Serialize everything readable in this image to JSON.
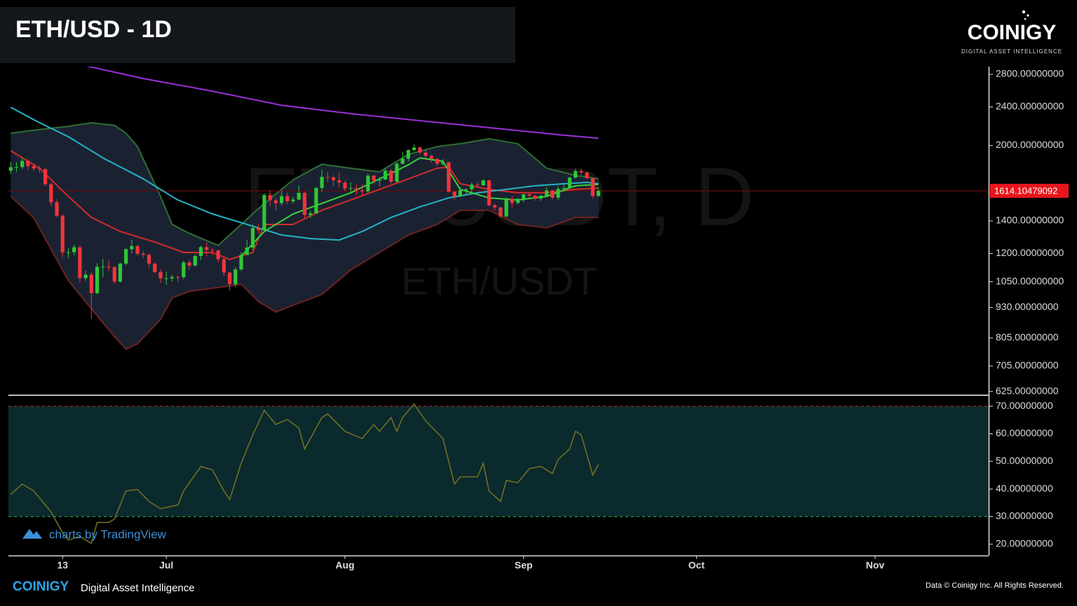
{
  "header": {
    "title": "ETH/USD - 1D",
    "logo": "COINIGY",
    "tagline": "DIGITAL ASSET INTELLIGENCE"
  },
  "chart_data": [
    {
      "type": "candlestick",
      "watermark": "ETH/USDT, D",
      "watermark_subtitle": "ETH/USDT",
      "log_scale": true,
      "xlim": [
        -0.4,
        169.7
      ],
      "ylim": [
        617,
        2904
      ],
      "yticks": [
        {
          "value": 2800,
          "label": "2800.00000000"
        },
        {
          "value": 2400,
          "label": "2400.00000000"
        },
        {
          "value": 2000,
          "label": "2000.00000000"
        },
        {
          "value": 1400,
          "label": "1400.00000000"
        },
        {
          "value": 1200,
          "label": "1200.00000000"
        },
        {
          "value": 1050,
          "label": "1050.00000000"
        },
        {
          "value": 930,
          "label": "930.00000000"
        },
        {
          "value": 805,
          "label": "805.00000000"
        },
        {
          "value": 705,
          "label": "705.00000000"
        },
        {
          "value": 625,
          "label": "625.00000000"
        }
      ],
      "up_color": "#2fc737",
      "down_color": "#f2343c",
      "x": [
        0,
        1,
        2,
        3,
        4,
        5,
        6,
        7,
        8,
        9,
        10,
        11,
        12,
        13,
        14,
        15,
        16,
        17,
        18,
        19,
        20,
        21,
        22,
        23,
        24,
        25,
        26,
        27,
        28,
        29,
        30,
        31,
        32,
        33,
        34,
        35,
        36,
        37,
        38,
        39,
        40,
        41,
        42,
        43,
        44,
        45,
        46,
        47,
        48,
        49,
        50,
        51,
        52,
        53,
        54,
        55,
        56,
        57,
        58,
        59,
        60,
        61,
        62,
        63,
        64,
        65,
        66,
        67,
        68,
        69,
        70,
        71,
        72,
        73,
        74,
        75,
        76,
        77,
        78,
        79,
        80,
        81,
        82,
        83,
        84,
        85,
        86,
        87,
        88,
        89,
        90,
        91,
        92,
        93,
        94,
        95,
        96,
        97,
        98,
        99,
        100,
        101,
        102
      ],
      "open": [
        1775,
        1805,
        1806,
        1859,
        1814,
        1793,
        1789,
        1665,
        1529,
        1435,
        1207,
        1208,
        1236,
        1068,
        1086,
        995,
        1127,
        1128,
        1125,
        1051,
        1144,
        1225,
        1243,
        1199,
        1193,
        1144,
        1099,
        1067,
        1067,
        1074,
        1073,
        1150,
        1133,
        1186,
        1237,
        1220,
        1217,
        1168,
        1097,
        1038,
        1113,
        1192,
        1234,
        1354,
        1339,
        1581,
        1543,
        1523,
        1574,
        1536,
        1549,
        1598,
        1440,
        1451,
        1636,
        1724,
        1721,
        1697,
        1679,
        1632,
        1634,
        1618,
        1610,
        1734,
        1694,
        1702,
        1775,
        1685,
        1835,
        1879,
        1957,
        1981,
        1935,
        1904,
        1877,
        1834,
        1848,
        1608,
        1574,
        1618,
        1626,
        1662,
        1657,
        1696,
        1508,
        1492,
        1430,
        1554,
        1524,
        1553,
        1587,
        1577,
        1556,
        1577,
        1617,
        1563,
        1629,
        1636,
        1718,
        1772,
        1761,
        1714,
        1575
      ],
      "high": [
        1850,
        1850,
        1885,
        1870,
        1835,
        1815,
        1795,
        1680,
        1550,
        1445,
        1230,
        1250,
        1245,
        1108,
        1098,
        1145,
        1170,
        1160,
        1130,
        1150,
        1230,
        1280,
        1248,
        1215,
        1200,
        1150,
        1115,
        1100,
        1085,
        1080,
        1160,
        1165,
        1195,
        1245,
        1265,
        1230,
        1222,
        1175,
        1100,
        1125,
        1208,
        1280,
        1375,
        1380,
        1595,
        1615,
        1560,
        1615,
        1600,
        1570,
        1655,
        1608,
        1470,
        1645,
        1785,
        1765,
        1735,
        1760,
        1695,
        1680,
        1665,
        1665,
        1750,
        1740,
        1722,
        1795,
        1790,
        1845,
        1940,
        1965,
        2010,
        1990,
        1965,
        1915,
        1885,
        1875,
        1850,
        1610,
        1645,
        1635,
        1680,
        1685,
        1705,
        1700,
        1515,
        1495,
        1565,
        1575,
        1562,
        1592,
        1598,
        1585,
        1585,
        1645,
        1622,
        1650,
        1668,
        1726,
        1790,
        1790,
        1765,
        1722,
        1640
      ],
      "low": [
        1745,
        1765,
        1790,
        1780,
        1770,
        1755,
        1650,
        1500,
        1425,
        1180,
        1175,
        1190,
        1045,
        1055,
        880,
        990,
        1075,
        1105,
        1040,
        1045,
        1135,
        1200,
        1190,
        1175,
        1125,
        1095,
        1045,
        1035,
        1052,
        1050,
        1063,
        1110,
        1130,
        1165,
        1185,
        1190,
        1150,
        1078,
        1007,
        1025,
        1105,
        1190,
        1220,
        1320,
        1330,
        1500,
        1470,
        1505,
        1515,
        1520,
        1545,
        1420,
        1420,
        1450,
        1605,
        1680,
        1650,
        1640,
        1610,
        1605,
        1583,
        1575,
        1600,
        1665,
        1650,
        1700,
        1670,
        1680,
        1830,
        1855,
        1945,
        1920,
        1880,
        1845,
        1815,
        1820,
        1600,
        1550,
        1565,
        1580,
        1600,
        1645,
        1650,
        1500,
        1470,
        1422,
        1425,
        1490,
        1515,
        1530,
        1555,
        1540,
        1540,
        1568,
        1550,
        1545,
        1610,
        1630,
        1710,
        1735,
        1705,
        1560,
        1570
      ],
      "close": [
        1805,
        1806,
        1859,
        1814,
        1793,
        1789,
        1665,
        1529,
        1435,
        1207,
        1208,
        1236,
        1068,
        1086,
        995,
        1127,
        1128,
        1125,
        1051,
        1144,
        1225,
        1243,
        1199,
        1193,
        1144,
        1099,
        1067,
        1067,
        1074,
        1073,
        1150,
        1133,
        1186,
        1237,
        1220,
        1217,
        1168,
        1097,
        1038,
        1113,
        1192,
        1234,
        1354,
        1339,
        1581,
        1543,
        1523,
        1574,
        1536,
        1549,
        1598,
        1440,
        1451,
        1636,
        1724,
        1721,
        1697,
        1679,
        1632,
        1634,
        1618,
        1610,
        1734,
        1694,
        1702,
        1775,
        1685,
        1835,
        1879,
        1957,
        1981,
        1935,
        1904,
        1877,
        1834,
        1848,
        1608,
        1574,
        1618,
        1626,
        1662,
        1657,
        1696,
        1508,
        1492,
        1430,
        1554,
        1524,
        1553,
        1587,
        1577,
        1556,
        1577,
        1617,
        1563,
        1629,
        1636,
        1718,
        1772,
        1761,
        1714,
        1575,
        1614.10479092
      ],
      "band": {
        "fill": "#1a2232",
        "upper_color": "#2f6e33",
        "lower_color": "#6e2222",
        "x": [
          0,
          4,
          10,
          14,
          18,
          20,
          22,
          26,
          28,
          31,
          36,
          40,
          43,
          46,
          49,
          54,
          59,
          64,
          69,
          74,
          78,
          83,
          88,
          93,
          98,
          102
        ],
        "upper": [
          2119,
          2150,
          2190,
          2227,
          2200,
          2120,
          1990,
          1572,
          1377,
          1320,
          1247,
          1377,
          1485,
          1590,
          1700,
          1830,
          1796,
          1766,
          1918,
          1990,
          2017,
          2064,
          2017,
          1796,
          1736,
          1708
        ],
        "lower": [
          1572,
          1420,
          1056,
          924,
          810,
          763,
          783,
          879,
          972,
          1004,
          1022,
          1038,
          956,
          910,
          940,
          989,
          1110,
          1206,
          1310,
          1377,
          1472,
          1472,
          1377,
          1355,
          1423,
          1423
        ]
      },
      "series": [
        {
          "color": "#d42a2a",
          "x": [
            0,
            5,
            10,
            14,
            19,
            25,
            30,
            35,
            38,
            42,
            44,
            49,
            54,
            59,
            64,
            69,
            74,
            76,
            78,
            83,
            88,
            93,
            98,
            102
          ],
          "values": [
            1951,
            1796,
            1572,
            1423,
            1332,
            1267,
            1206,
            1206,
            1167,
            1206,
            1377,
            1377,
            1472,
            1546,
            1625,
            1708,
            1796,
            1807,
            1669,
            1625,
            1599,
            1599,
            1625,
            1636
          ]
        },
        {
          "color": "#27b3c6",
          "x": [
            0,
            5,
            10,
            16,
            23,
            29,
            35,
            41,
            47,
            52,
            57,
            61,
            66,
            71,
            76,
            81,
            86,
            91,
            96,
            100,
            102
          ],
          "values": [
            2396,
            2227,
            2085,
            1886,
            1708,
            1546,
            1447,
            1377,
            1310,
            1288,
            1279,
            1332,
            1423,
            1496,
            1561,
            1599,
            1625,
            1653,
            1669,
            1680,
            1669
          ]
        },
        {
          "color": "#3ad13a",
          "x": [
            40,
            44,
            49,
            54,
            59,
            64,
            69,
            71,
            75,
            78,
            83,
            88,
            93,
            98,
            102
          ],
          "values": [
            1186,
            1332,
            1447,
            1521,
            1599,
            1708,
            1825,
            1886,
            1856,
            1625,
            1561,
            1546,
            1572,
            1653,
            1664
          ]
        },
        {
          "color": "#9b30d9",
          "x": [
            12,
            23,
            35,
            47,
            59,
            71,
            83,
            95,
            102
          ],
          "values": [
            2933,
            2745,
            2586,
            2419,
            2325,
            2249,
            2176,
            2105,
            2070
          ]
        }
      ],
      "last_price": {
        "value": 1614.10479092,
        "label": "1614.10479092",
        "color": "#e8161c"
      }
    },
    {
      "type": "line",
      "xlim": [
        -0.4,
        169.7
      ],
      "ylim": [
        15.9,
        73.6
      ],
      "yticks": [
        {
          "value": 70,
          "label": "70.00000000"
        },
        {
          "value": 60,
          "label": "60.00000000"
        },
        {
          "value": 50,
          "label": "50.00000000"
        },
        {
          "value": 40,
          "label": "40.00000000"
        },
        {
          "value": 30,
          "label": "30.00000000"
        },
        {
          "value": 20,
          "label": "20.00000000"
        }
      ],
      "xticks": [
        {
          "value": 9,
          "label": "13"
        },
        {
          "value": 27,
          "label": "Jul"
        },
        {
          "value": 58,
          "label": "Aug"
        },
        {
          "value": 89,
          "label": "Sep"
        },
        {
          "value": 119,
          "label": "Oct"
        },
        {
          "value": 150,
          "label": "Nov"
        }
      ],
      "upper_band": 70,
      "lower_band": 30,
      "band_fill": "#0b2a2e",
      "color": "#6f6f22",
      "x": [
        0,
        2,
        4,
        7,
        9,
        10,
        12,
        14,
        15,
        17,
        18,
        20,
        22,
        24,
        26,
        29,
        30,
        33,
        35,
        37,
        38,
        40,
        42,
        44,
        46,
        48,
        50,
        51,
        54,
        55,
        58,
        61,
        63,
        64,
        66,
        67,
        68,
        70,
        72,
        75,
        77,
        78,
        81,
        82,
        83,
        85,
        86,
        88,
        90,
        92,
        94,
        95,
        97,
        98,
        99,
        101,
        102
      ],
      "values": [
        38.0,
        41.8,
        39.3,
        31.7,
        24.1,
        21.5,
        22.8,
        20.3,
        27.9,
        27.9,
        29.1,
        39.3,
        39.8,
        35.5,
        32.9,
        34.2,
        39.3,
        48.2,
        46.9,
        39.3,
        36.2,
        49.4,
        59.6,
        68.5,
        63.4,
        65.2,
        62.1,
        54.5,
        65.9,
        67.2,
        60.9,
        58.3,
        63.4,
        60.9,
        65.9,
        60.9,
        65.9,
        70.8,
        64.7,
        58.3,
        41.8,
        44.4,
        44.4,
        49.4,
        39.3,
        35.5,
        43.1,
        42.3,
        47.4,
        48.2,
        45.6,
        50.7,
        54.5,
        60.9,
        59.6,
        45.1,
        48.9
      ]
    }
  ],
  "footer": {
    "attribution": "charts by TradingView",
    "brand": "COINIGY",
    "brand_tagline": "Digital Asset Intelligence",
    "copyright": "Data © Coinigy Inc.  All Rights Reserved."
  }
}
